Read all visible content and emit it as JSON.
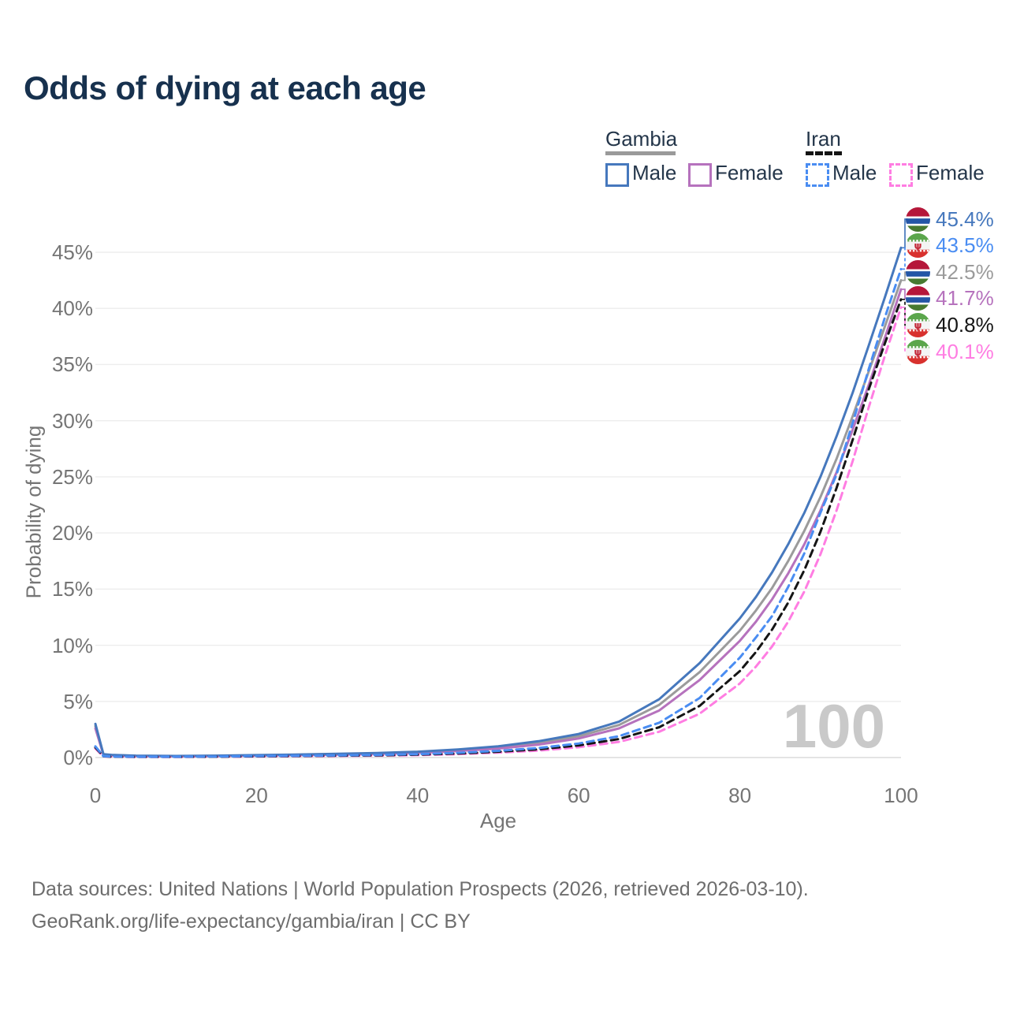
{
  "title": "Odds of dying at each age",
  "legend": {
    "groups": [
      {
        "label": "Gambia",
        "line_style": "solid",
        "underline_color": "#9a9a9a",
        "items": [
          {
            "label": "Male",
            "color": "#4678bd",
            "dash": false
          },
          {
            "label": "Female",
            "color": "#b672bd",
            "dash": false
          }
        ]
      },
      {
        "label": "Iran",
        "line_style": "dashed",
        "underline_color": "#141414",
        "items": [
          {
            "label": "Male",
            "color": "#4a8df2",
            "dash": true
          },
          {
            "label": "Female",
            "color": "#ff7de2",
            "dash": true
          }
        ]
      }
    ]
  },
  "chart_data": {
    "type": "line",
    "title": "Odds of dying at each age",
    "xlabel": "Age",
    "ylabel": "Probability of dying",
    "unit": "%",
    "xlim": [
      0,
      100
    ],
    "ylim": [
      0,
      48
    ],
    "grid": "horizontal",
    "watermark": "100",
    "x_ticks": [
      {
        "value": 0,
        "label": "0"
      },
      {
        "value": 20,
        "label": "20"
      },
      {
        "value": 40,
        "label": "40"
      },
      {
        "value": 60,
        "label": "60"
      },
      {
        "value": 80,
        "label": "80"
      },
      {
        "value": 100,
        "label": "100"
      }
    ],
    "y_ticks": [
      {
        "value": 0,
        "label": "0%"
      },
      {
        "value": 5,
        "label": "5%"
      },
      {
        "value": 10,
        "label": "10%"
      },
      {
        "value": 15,
        "label": "15%"
      },
      {
        "value": 20,
        "label": "20%"
      },
      {
        "value": 25,
        "label": "25%"
      },
      {
        "value": 30,
        "label": "30%"
      },
      {
        "value": 35,
        "label": "35%"
      },
      {
        "value": 40,
        "label": "40%"
      },
      {
        "value": 45,
        "label": "45%"
      }
    ],
    "x": [
      0,
      1,
      2,
      5,
      10,
      15,
      20,
      25,
      30,
      35,
      40,
      45,
      50,
      55,
      60,
      65,
      70,
      75,
      80,
      82,
      84,
      86,
      88,
      90,
      92,
      94,
      96,
      98,
      100
    ],
    "series": [
      {
        "id": "gambia-male",
        "name": "Gambia Male",
        "country": "gambia",
        "color": "#4678bd",
        "dash": false,
        "end_label": "45.4%",
        "end_value": 45.4,
        "values": [
          3.0,
          0.3,
          0.24,
          0.17,
          0.14,
          0.17,
          0.22,
          0.27,
          0.33,
          0.41,
          0.52,
          0.72,
          1.0,
          1.45,
          2.1,
          3.2,
          5.2,
          8.4,
          12.4,
          14.3,
          16.5,
          19.0,
          21.8,
          25.0,
          28.6,
          32.5,
          36.7,
          41.0,
          45.4
        ]
      },
      {
        "id": "iran-male",
        "name": "Iran Male",
        "country": "iran",
        "color": "#4a8df2",
        "dash": true,
        "end_label": "43.5%",
        "end_value": 43.5,
        "values": [
          1.0,
          0.12,
          0.09,
          0.07,
          0.07,
          0.09,
          0.13,
          0.16,
          0.19,
          0.23,
          0.3,
          0.42,
          0.6,
          0.85,
          1.25,
          1.9,
          3.1,
          5.3,
          8.9,
          10.7,
          12.6,
          15.2,
          18.2,
          21.8,
          25.2,
          29.8,
          34.6,
          39.2,
          43.5
        ]
      },
      {
        "id": "gambia-total",
        "name": "Gambia",
        "country": "gambia",
        "color": "#9b9b9b",
        "dash": false,
        "end_label": "42.5%",
        "end_value": 42.5,
        "values": [
          2.8,
          0.27,
          0.22,
          0.15,
          0.13,
          0.15,
          0.2,
          0.25,
          0.3,
          0.37,
          0.47,
          0.65,
          0.9,
          1.3,
          1.9,
          2.9,
          4.7,
          7.6,
          11.3,
          13.1,
          15.1,
          17.5,
          20.2,
          23.2,
          26.6,
          30.4,
          34.4,
          38.4,
          42.5
        ]
      },
      {
        "id": "gambia-female",
        "name": "Gambia Female",
        "country": "gambia",
        "color": "#b672bd",
        "dash": false,
        "end_label": "41.7%",
        "end_value": 41.7,
        "values": [
          2.6,
          0.25,
          0.2,
          0.14,
          0.12,
          0.14,
          0.18,
          0.22,
          0.27,
          0.33,
          0.42,
          0.58,
          0.8,
          1.15,
          1.7,
          2.6,
          4.2,
          6.9,
          10.4,
          12.1,
          14.1,
          16.4,
          19.0,
          22.0,
          25.4,
          29.2,
          33.2,
          37.4,
          41.7
        ]
      },
      {
        "id": "iran-total",
        "name": "Iran",
        "country": "iran",
        "color": "#151515",
        "dash": true,
        "end_label": "40.8%",
        "end_value": 40.8,
        "values": [
          0.9,
          0.11,
          0.08,
          0.06,
          0.06,
          0.08,
          0.11,
          0.14,
          0.17,
          0.2,
          0.26,
          0.36,
          0.52,
          0.74,
          1.08,
          1.65,
          2.7,
          4.6,
          7.7,
          9.4,
          11.4,
          13.8,
          16.7,
          20.1,
          24.0,
          28.3,
          32.8,
          36.9,
          40.8
        ]
      },
      {
        "id": "iran-female",
        "name": "Iran Female",
        "country": "iran",
        "color": "#ff7de2",
        "dash": true,
        "end_label": "40.1%",
        "end_value": 40.1,
        "values": [
          0.8,
          0.1,
          0.07,
          0.05,
          0.05,
          0.07,
          0.09,
          0.12,
          0.14,
          0.17,
          0.22,
          0.3,
          0.44,
          0.62,
          0.92,
          1.4,
          2.3,
          3.9,
          6.6,
          8.1,
          9.9,
          12.1,
          14.8,
          18.1,
          22.0,
          26.4,
          31.2,
          35.8,
          40.1
        ]
      }
    ],
    "z_order": [
      2,
      3,
      0,
      5,
      4,
      1
    ]
  },
  "footer": {
    "line1": "Data sources: United Nations | World Population Prospects (2026, retrieved 2026-03-10).",
    "line2": "GeoRank.org/life-expectancy/gambia/iran | CC BY"
  }
}
